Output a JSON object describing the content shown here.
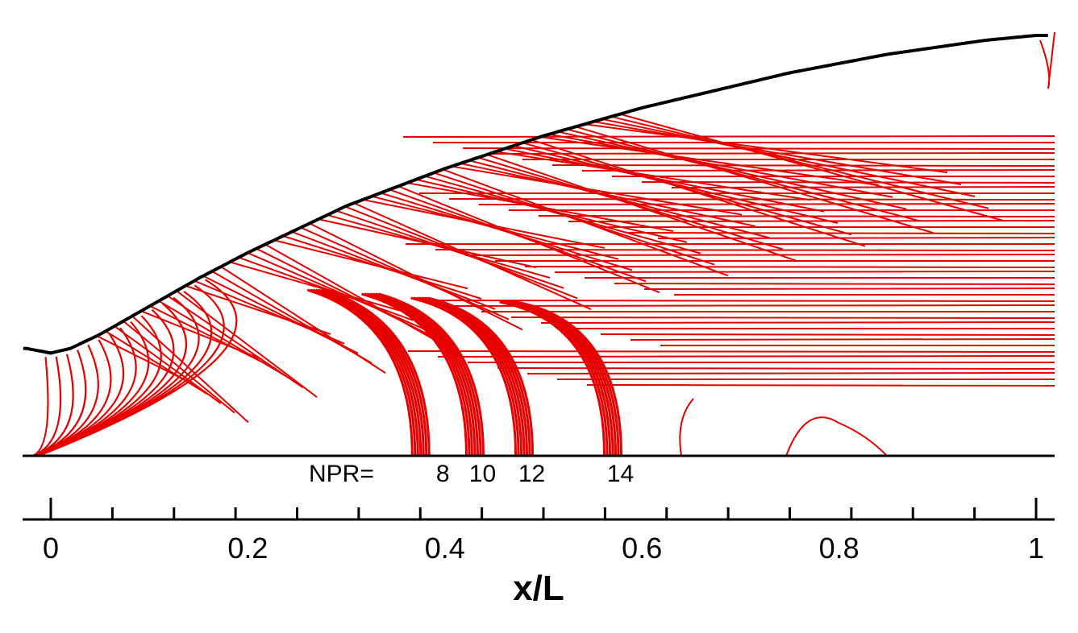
{
  "chart_data": {
    "type": "line",
    "title": "",
    "xlabel": "x/L",
    "ylabel": "",
    "xlim": [
      0,
      1
    ],
    "x_ticks": [
      0,
      0.2,
      0.4,
      0.6,
      0.8,
      1
    ],
    "x_tick_labels": [
      "0",
      "0.2",
      "0.4",
      "0.6",
      "0.8",
      "1"
    ],
    "minor_tick_step": 0.025,
    "grid": false,
    "legend": "none",
    "annotation": {
      "prefix": "NPR=",
      "labels": [
        "8",
        "10",
        "12",
        "14"
      ],
      "x": [
        0.375,
        0.43,
        0.48,
        0.57
      ]
    },
    "series": [
      {
        "x": [
          -0.025,
          0.0,
          0.02,
          0.05,
          0.1,
          0.15,
          0.2,
          0.25,
          0.3,
          0.35,
          0.4,
          0.45,
          0.5,
          0.55,
          0.6,
          0.65,
          0.7,
          0.75,
          0.8,
          0.85,
          0.9,
          0.95,
          1.0
        ],
        "y": [
          0.23,
          0.22,
          0.23,
          0.26,
          0.32,
          0.38,
          0.435,
          0.485,
          0.535,
          0.575,
          0.615,
          0.65,
          0.685,
          0.715,
          0.745,
          0.77,
          0.795,
          0.82,
          0.84,
          0.86,
          0.875,
          0.89,
          0.9
        ]
      }
    ],
    "colors": {
      "contour": "#e60000",
      "wall": "#000000",
      "axis": "#000000"
    }
  }
}
